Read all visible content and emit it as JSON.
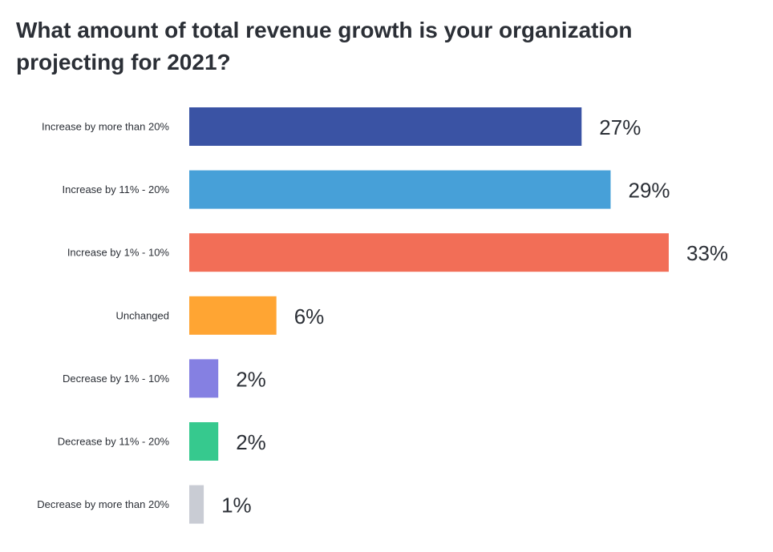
{
  "chart_data": {
    "type": "bar",
    "orientation": "horizontal",
    "title": "What amount of total revenue growth is your organization projecting for 2021?",
    "xlabel": "",
    "ylabel": "",
    "categories": [
      "Increase by more than 20%",
      "Increase by 11% - 20%",
      "Increase by 1% - 10%",
      "Unchanged",
      "Decrease by 1% - 10%",
      "Decrease by 11% - 20%",
      "Decrease by more than 20%"
    ],
    "values": [
      27,
      29,
      33,
      6,
      2,
      2,
      1
    ],
    "value_labels": [
      "27%",
      "29%",
      "33%",
      "6%",
      "2%",
      "2%",
      "1%"
    ],
    "colors": [
      "#3a53a4",
      "#47a0d8",
      "#f26e57",
      "#ffa533",
      "#8580e2",
      "#36c98e",
      "#c9ccd4"
    ],
    "xlim": [
      0,
      33
    ],
    "grid": false,
    "legend": "none"
  }
}
